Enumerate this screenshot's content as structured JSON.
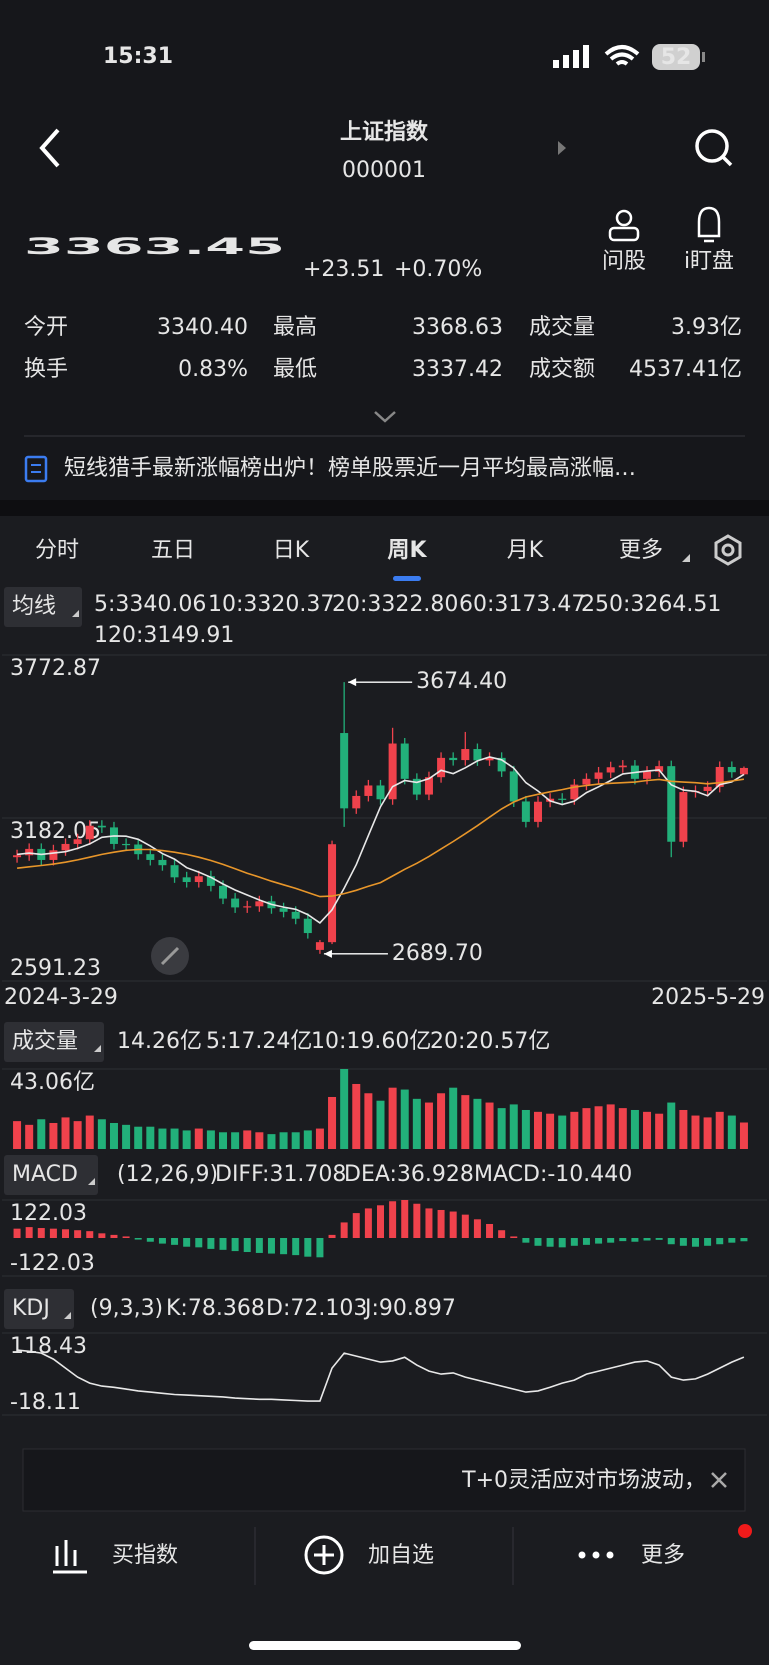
{
  "status": {
    "time": "15:31",
    "battery": "52"
  },
  "header": {
    "title": "上证指数",
    "code": "000001"
  },
  "quote": {
    "price": "3363.45",
    "change": "+23.51",
    "percent": "+0.70%"
  },
  "actions": [
    "问股",
    "i盯盘"
  ],
  "stats": [
    {
      "label": "今开",
      "value": "3340.40",
      "color": "#f0424c"
    },
    {
      "label": "最高",
      "value": "3368.63",
      "color": "#f0424c"
    },
    {
      "label": "成交量",
      "value": "3.93亿",
      "color": "#ffffff"
    },
    {
      "label": "换手",
      "value": "0.83%",
      "color": "#ffffff"
    },
    {
      "label": "最低",
      "value": "3337.42",
      "color": "#22b07a"
    },
    {
      "label": "成交额",
      "value": "4537.41亿",
      "color": "#ffffff"
    }
  ],
  "news": "短线猎手最新涨幅榜出炉！榜单股票近一月平均最高涨幅…",
  "tabs": {
    "items": [
      "分时",
      "五日",
      "日K",
      "周K",
      "月K",
      "更多"
    ],
    "active": 3
  },
  "ad": "T+0灵活应对市场波动，",
  "bottom": [
    "买指数",
    "加自选",
    "更多"
  ],
  "chart_data": [
    {
      "type": "candlestick",
      "legend_button": "均线",
      "x_start": "2024-3-29",
      "x_end": "2025-5-29",
      "ylim": [
        2591.23,
        3772.87
      ],
      "yticks": [
        3772.87,
        3182.05,
        2591.23
      ],
      "max_label": "3674.40",
      "min_label": "2689.70",
      "up_color": "#f0424c",
      "down_color": "#22b07a",
      "open": [
        3040,
        3047,
        3070,
        3030,
        3065,
        3088,
        3105,
        3154,
        3148,
        3088,
        3086,
        3051,
        3030,
        3011,
        2967,
        2950,
        2971,
        2936,
        2890,
        2858,
        2862,
        2880,
        2855,
        2842,
        2817,
        2704,
        2732,
        3490,
        3217,
        3262,
        3300,
        3250,
        3452,
        3324,
        3267,
        3330,
        3400,
        3392,
        3432,
        3391,
        3400,
        3351,
        3242,
        3168,
        3241,
        3252,
        3250,
        3303,
        3324,
        3347,
        3366,
        3372,
        3324,
        3350,
        3370,
        3096,
        3276,
        3280,
        3295,
        3367,
        3340.4
      ],
      "high": [
        3067,
        3090,
        3090,
        3085,
        3108,
        3125,
        3174,
        3174,
        3168,
        3108,
        3106,
        3071,
        3050,
        3031,
        2987,
        2991,
        2991,
        2956,
        2910,
        2882,
        2900,
        2900,
        2875,
        2862,
        2837,
        2740,
        3100,
        3674.4,
        3282,
        3320,
        3320,
        3509,
        3472,
        3344,
        3350,
        3420,
        3420,
        3494,
        3452,
        3420,
        3420,
        3371,
        3262,
        3261,
        3272,
        3272,
        3323,
        3344,
        3367,
        3386,
        3392,
        3392,
        3370,
        3390,
        3390,
        3296,
        3300,
        3315,
        3387,
        3387,
        3368.63
      ],
      "low": [
        3020,
        3027,
        3010,
        3010,
        3045,
        3068,
        3085,
        3128,
        3068,
        3066,
        3031,
        3010,
        2991,
        2947,
        2930,
        2930,
        2916,
        2870,
        2838,
        2838,
        2842,
        2835,
        2822,
        2797,
        2745,
        2689.7,
        2725,
        3150,
        3197,
        3242,
        3230,
        3230,
        3304,
        3247,
        3247,
        3310,
        3372,
        3372,
        3371,
        3371,
        3331,
        3222,
        3148,
        3148,
        3221,
        3230,
        3230,
        3283,
        3304,
        3327,
        3346,
        3304,
        3304,
        3330,
        3040,
        3076,
        3256,
        3260,
        3275,
        3328,
        3337.42
      ],
      "close": [
        3047,
        3070,
        3030,
        3065,
        3088,
        3105,
        3154,
        3148,
        3088,
        3086,
        3051,
        3030,
        3011,
        2967,
        2950,
        2971,
        2936,
        2890,
        2858,
        2862,
        2880,
        2855,
        2842,
        2817,
        2765,
        2732,
        3087,
        3217,
        3262,
        3300,
        3250,
        3452,
        3324,
        3267,
        3330,
        3400,
        3392,
        3432,
        3391,
        3400,
        3351,
        3242,
        3168,
        3241,
        3252,
        3250,
        3303,
        3324,
        3347,
        3366,
        3372,
        3324,
        3350,
        3370,
        3096,
        3276,
        3280,
        3295,
        3367,
        3348,
        3363.45
      ],
      "series": [
        {
          "name": "5:3340.06",
          "color": "#e8e8e8",
          "values": [
            3050,
            3055,
            3050,
            3055,
            3060,
            3072,
            3088,
            3112,
            3117,
            3116,
            3105,
            3081,
            3053,
            3033,
            3002,
            2986,
            2967,
            2943,
            2921,
            2903,
            2885,
            2869,
            2859,
            2851,
            2832,
            2802,
            2849,
            2928,
            3013,
            3119,
            3223,
            3296,
            3318,
            3311,
            3325,
            3355,
            3343,
            3364,
            3389,
            3403,
            3393,
            3363,
            3310,
            3280,
            3244,
            3231,
            3243,
            3274,
            3295,
            3318,
            3342,
            3347,
            3352,
            3356,
            3302,
            3283,
            3279,
            3263,
            3303,
            3313,
            3340.06
          ]
        },
        {
          "name": "20:3322.80",
          "color": "#e8962a",
          "values": [
            3000,
            3005,
            3010,
            3015,
            3022,
            3030,
            3040,
            3050,
            3058,
            3065,
            3068,
            3068,
            3064,
            3058,
            3050,
            3040,
            3028,
            3014,
            2998,
            2982,
            2968,
            2953,
            2940,
            2927,
            2912,
            2897,
            2899,
            2908,
            2920,
            2935,
            2948,
            2972,
            2996,
            3018,
            3043,
            3070,
            3097,
            3125,
            3154,
            3185,
            3215,
            3240,
            3258,
            3268,
            3277,
            3285,
            3294,
            3300,
            3305,
            3308,
            3310,
            3312,
            3318,
            3322,
            3315,
            3312,
            3310,
            3306,
            3310,
            3316,
            3322.8
          ]
        }
      ],
      "legend_extra": [
        {
          "name": "10:3320.37",
          "color": "#4a8cf7"
        },
        {
          "name": "60:3173.47",
          "color": "#b44fe0"
        },
        {
          "name": "250:3264.51",
          "color": "#c9363c"
        },
        {
          "name": "120:3149.91",
          "color": "#b0b030"
        }
      ]
    },
    {
      "type": "bar",
      "legend_button": "成交量",
      "legend": [
        {
          "name": "14.26亿",
          "color": "#d8d8d8"
        },
        {
          "name": "5:17.24亿",
          "color": "#e8e8e8"
        },
        {
          "name": "10:19.60亿",
          "color": "#4a8cf7"
        },
        {
          "name": "20:20.57亿",
          "color": "#e8962a"
        }
      ],
      "ylim": [
        0,
        43.06
      ],
      "yticks": [
        {
          "value": 43.06,
          "label": "43.06亿"
        }
      ],
      "values": [
        15,
        13,
        16,
        14,
        17,
        15,
        18,
        16,
        14,
        13,
        12,
        12,
        11,
        11,
        10,
        11,
        10,
        9,
        9,
        10,
        9,
        8,
        9,
        9,
        10,
        11,
        28,
        43.06,
        35,
        30,
        26,
        33,
        32,
        27,
        25,
        30,
        33,
        29,
        27,
        25,
        22,
        24,
        21,
        20,
        19,
        18,
        20,
        22,
        23,
        24,
        22,
        21,
        20,
        19,
        25,
        21,
        18,
        17,
        20,
        18,
        14.26
      ]
    },
    {
      "type": "bar",
      "legend_button": "MACD",
      "params": "(12,26,9)",
      "legend": [
        {
          "name": "DIFF:31.708",
          "color": "#e8962a"
        },
        {
          "name": "DEA:36.928",
          "color": "#4a8cf7"
        },
        {
          "name": "MACD:-10.440",
          "color": "#b44fe0"
        }
      ],
      "ylim": [
        -122.03,
        122.03
      ],
      "yticks": [
        122.03,
        -122.03
      ],
      "values": [
        30,
        35,
        32,
        30,
        28,
        25,
        22,
        15,
        10,
        5,
        -5,
        -12,
        -18,
        -22,
        -28,
        -30,
        -35,
        -38,
        -42,
        -45,
        -48,
        -50,
        -52,
        -55,
        -60,
        -62,
        10,
        50,
        80,
        95,
        105,
        118,
        122.03,
        110,
        95,
        90,
        85,
        75,
        60,
        45,
        25,
        5,
        -15,
        -25,
        -28,
        -30,
        -25,
        -22,
        -18,
        -15,
        -10,
        -12,
        -8,
        -6,
        -20,
        -25,
        -28,
        -25,
        -20,
        -15,
        -10.44
      ]
    },
    {
      "type": "line",
      "legend_button": "KDJ",
      "params": "(9,3,3)",
      "ylim": [
        -18.11,
        118.43
      ],
      "yticks": [
        118.43,
        -18.11
      ],
      "series": [
        {
          "name": "K:78.368",
          "color": "#e8e8e8",
          "values": [
            90,
            88,
            85,
            75,
            60,
            45,
            35,
            30,
            28,
            25,
            22,
            20,
            18,
            16,
            15,
            14,
            13,
            12,
            10,
            9,
            8,
            8,
            7,
            6,
            5,
            5,
            60,
            85,
            80,
            75,
            70,
            72,
            78,
            65,
            55,
            50,
            52,
            45,
            40,
            35,
            30,
            25,
            20,
            22,
            28,
            35,
            40,
            50,
            55,
            60,
            65,
            70,
            72,
            65,
            45,
            40,
            42,
            50,
            60,
            70,
            78.368
          ]
        }
      ],
      "legend_extra": [
        {
          "name": "D:72.103",
          "color": "#4a8cf7"
        },
        {
          "name": "J:90.897",
          "color": "#e8962a"
        }
      ]
    }
  ]
}
